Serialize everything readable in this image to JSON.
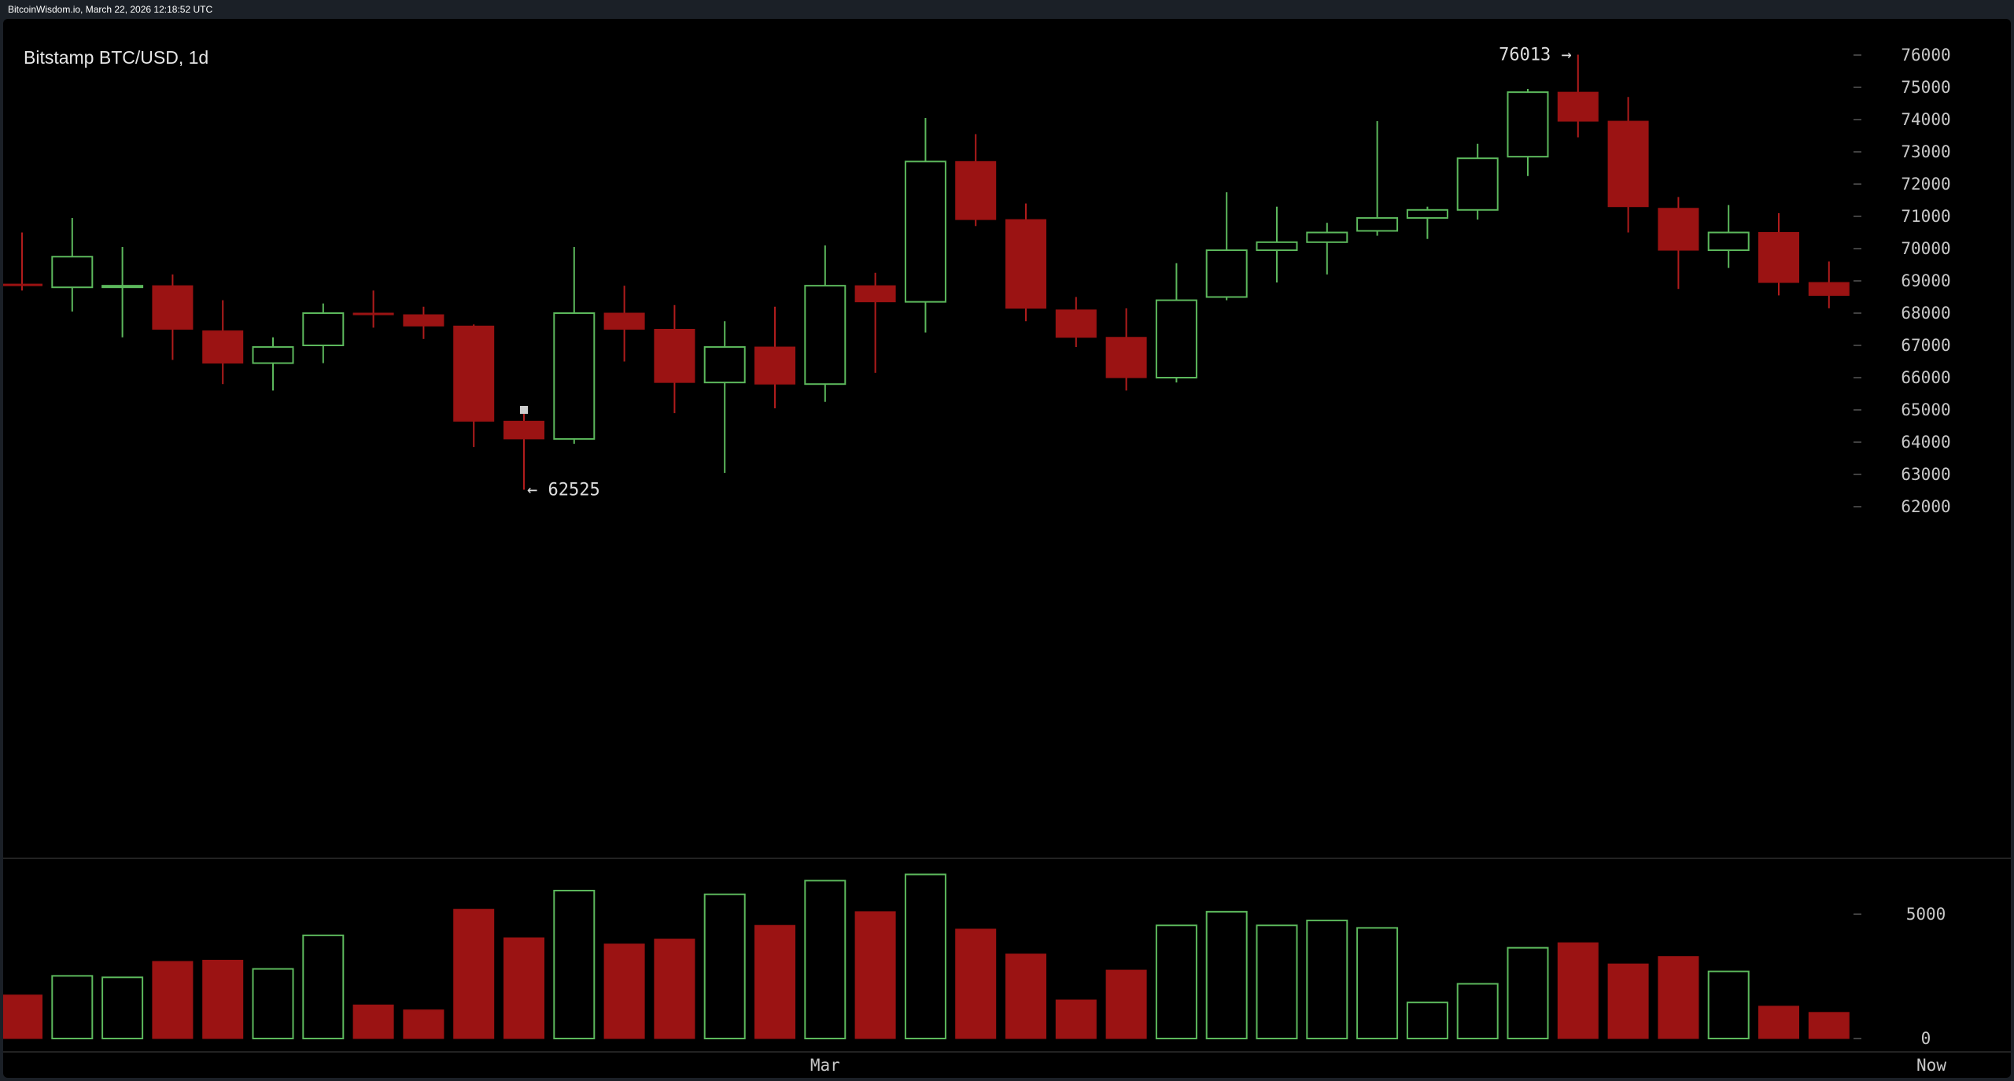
{
  "header": {
    "status_text": "BitcoinWisdom.io, March 22, 2026 12:18:52 UTC"
  },
  "colors": {
    "up": "#5cb85c",
    "down": "#9b1313",
    "down_wick": "#b01c1c",
    "text": "#dddddd",
    "axis_text": "#c8c8c8",
    "background": "#000000",
    "separator": "#2e2e2e"
  },
  "chart_data": {
    "type": "candlestick",
    "title": "Bitstamp BTC/USD, 1d",
    "y_axis": {
      "ticks": [
        62000,
        63000,
        64000,
        65000,
        66000,
        67000,
        68000,
        69000,
        70000,
        71000,
        72000,
        73000,
        74000,
        75000,
        76000
      ],
      "range": [
        61500,
        76500
      ],
      "position": "right"
    },
    "volume_axis": {
      "ticks": [
        0,
        5000
      ],
      "range": [
        0,
        6700
      ]
    },
    "x_labels": [
      {
        "label": "Mar",
        "index": 16
      },
      {
        "label": "Now",
        "index": 38
      }
    ],
    "annotations": {
      "high": {
        "label": "76013 →",
        "value": 76013,
        "index": 31
      },
      "low": {
        "label": "← 62525",
        "value": 62525,
        "index": 10
      }
    },
    "candles": [
      {
        "o": 68900,
        "h": 70500,
        "l": 68700,
        "c": 68850,
        "v": 1750
      },
      {
        "o": 68800,
        "h": 70950,
        "l": 68050,
        "c": 69750,
        "v": 2520
      },
      {
        "o": 68850,
        "h": 70050,
        "l": 67250,
        "c": 68850,
        "v": 2460
      },
      {
        "o": 68850,
        "h": 69200,
        "l": 66550,
        "c": 67500,
        "v": 3100
      },
      {
        "o": 67450,
        "h": 68400,
        "l": 65800,
        "c": 66450,
        "v": 3150
      },
      {
        "o": 66450,
        "h": 67250,
        "l": 65600,
        "c": 66950,
        "v": 2800
      },
      {
        "o": 67000,
        "h": 68300,
        "l": 66450,
        "c": 68000,
        "v": 4150
      },
      {
        "o": 68000,
        "h": 68700,
        "l": 67550,
        "c": 67950,
        "v": 1350
      },
      {
        "o": 67950,
        "h": 68200,
        "l": 67200,
        "c": 67600,
        "v": 1150
      },
      {
        "o": 67600,
        "h": 67650,
        "l": 63850,
        "c": 64650,
        "v": 5200
      },
      {
        "o": 64650,
        "h": 65000,
        "l": 62525,
        "c": 64100,
        "v": 4050
      },
      {
        "o": 64100,
        "h": 70050,
        "l": 63950,
        "c": 68000,
        "v": 5950
      },
      {
        "o": 68000,
        "h": 68850,
        "l": 66500,
        "c": 67500,
        "v": 3800
      },
      {
        "o": 67500,
        "h": 68250,
        "l": 64900,
        "c": 65850,
        "v": 4000
      },
      {
        "o": 65850,
        "h": 67750,
        "l": 63050,
        "c": 66950,
        "v": 5800
      },
      {
        "o": 66950,
        "h": 68200,
        "l": 65050,
        "c": 65800,
        "v": 4550
      },
      {
        "o": 65800,
        "h": 70100,
        "l": 65250,
        "c": 68850,
        "v": 6350
      },
      {
        "o": 68850,
        "h": 69250,
        "l": 66150,
        "c": 68350,
        "v": 5100
      },
      {
        "o": 68350,
        "h": 74050,
        "l": 67400,
        "c": 72700,
        "v": 6600
      },
      {
        "o": 72700,
        "h": 73550,
        "l": 70700,
        "c": 70900,
        "v": 4400
      },
      {
        "o": 70900,
        "h": 71400,
        "l": 67750,
        "c": 68150,
        "v": 3400
      },
      {
        "o": 68100,
        "h": 68500,
        "l": 66950,
        "c": 67250,
        "v": 1550
      },
      {
        "o": 67250,
        "h": 68150,
        "l": 65600,
        "c": 66000,
        "v": 2750
      },
      {
        "o": 66000,
        "h": 69550,
        "l": 65850,
        "c": 68400,
        "v": 4550
      },
      {
        "o": 68500,
        "h": 71750,
        "l": 68400,
        "c": 69950,
        "v": 5100
      },
      {
        "o": 69950,
        "h": 71300,
        "l": 68950,
        "c": 70200,
        "v": 4550
      },
      {
        "o": 70200,
        "h": 70800,
        "l": 69200,
        "c": 70500,
        "v": 4750
      },
      {
        "o": 70550,
        "h": 73950,
        "l": 70400,
        "c": 70950,
        "v": 4450
      },
      {
        "o": 70950,
        "h": 71300,
        "l": 70300,
        "c": 71200,
        "v": 1450
      },
      {
        "o": 71200,
        "h": 73250,
        "l": 70900,
        "c": 72800,
        "v": 2200
      },
      {
        "o": 72850,
        "h": 74950,
        "l": 72250,
        "c": 74850,
        "v": 3650
      },
      {
        "o": 74850,
        "h": 76013,
        "l": 73450,
        "c": 73950,
        "v": 3850
      },
      {
        "o": 73950,
        "h": 74700,
        "l": 70500,
        "c": 71300,
        "v": 3000
      },
      {
        "o": 71250,
        "h": 71600,
        "l": 68750,
        "c": 69950,
        "v": 3300
      },
      {
        "o": 69950,
        "h": 71350,
        "l": 69400,
        "c": 70500,
        "v": 2700
      },
      {
        "o": 70500,
        "h": 71100,
        "l": 68550,
        "c": 68950,
        "v": 1300
      },
      {
        "o": 68950,
        "h": 69600,
        "l": 68150,
        "c": 68550,
        "v": 1050
      }
    ]
  }
}
